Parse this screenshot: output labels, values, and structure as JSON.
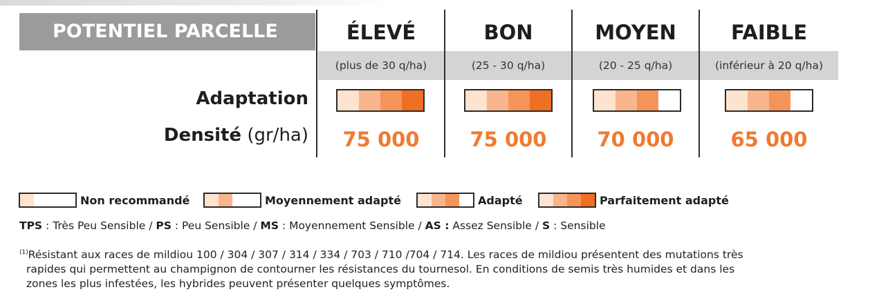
{
  "header": {
    "title": "POTENTIEL PARCELLE"
  },
  "columns": [
    {
      "label": "ÉLEVÉ",
      "range": "(plus de 30 q/ha)",
      "adaptation_level": 4,
      "density": "75 000"
    },
    {
      "label": "BON",
      "range": "(25 - 30 q/ha)",
      "adaptation_level": 4,
      "density": "75 000"
    },
    {
      "label": "MOYEN",
      "range": "(20 - 25 q/ha)",
      "adaptation_level": 3,
      "density": "70 000"
    },
    {
      "label": "FAIBLE",
      "range": "(inférieur à 20 q/ha)",
      "adaptation_level": 3,
      "density": "65 000"
    }
  ],
  "rows": {
    "adaptation_label": "Adaptation",
    "density_label": "Densité",
    "density_unit": "(gr/ha)"
  },
  "colors": {
    "seg1": "#fde3d0",
    "seg2": "#f9b68c",
    "seg3": "#f59459",
    "seg4": "#ef6f24",
    "density": "#ef7a30",
    "title_bg": "#9b9b9b",
    "subheader_bg": "#d4d4d4"
  },
  "legend": [
    {
      "label": "Non recommandé",
      "level": 1
    },
    {
      "label": "Moyennement adapté",
      "level": 2
    },
    {
      "label": "Adapté",
      "level": 3
    },
    {
      "label": "Parfaitement adapté",
      "level": 4
    }
  ],
  "abbreviations": [
    {
      "code": "TPS",
      "sep": " : ",
      "text": "Très Peu Sensible",
      "after": " / "
    },
    {
      "code": "PS",
      "sep": " : ",
      "text": "Peu Sensible",
      "after": " / "
    },
    {
      "code": "MS",
      "sep": " : ",
      "text": "Moyennement Sensible",
      "after": " / "
    },
    {
      "code": "AS :",
      "sep": " ",
      "text": "Assez Sensible",
      "after": " / "
    },
    {
      "code": "S",
      "sep": " : ",
      "text": "Sensible",
      "after": ""
    }
  ],
  "footnote": {
    "marker": "(1)",
    "line1": "Résistant aux races de mildiou 100 / 304 / 307 / 314 / 334 / 703 / 710 /704 / 714. Les races de mildiou présentent des mutations très",
    "line2": "rapides qui permettent au champignon de contourner les résistances du tournesol. En conditions de semis très humides et dans les",
    "line3": "zones les plus infestées, les hybrides peuvent présenter quelques symptômes."
  }
}
